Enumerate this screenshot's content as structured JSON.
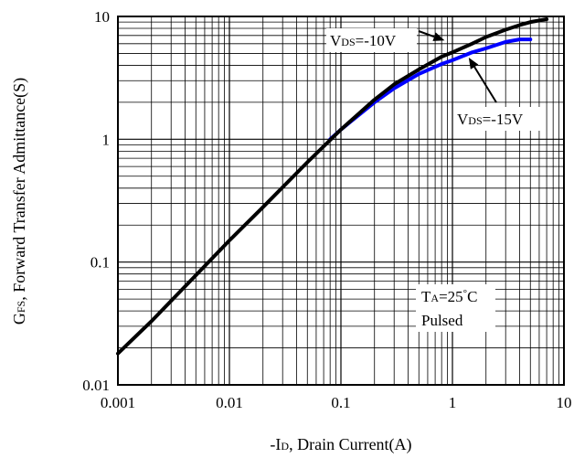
{
  "chart_data": {
    "type": "line",
    "xlabel": {
      "prefix": "-I",
      "sub": "D",
      "rest": ", Drain Current(A)"
    },
    "ylabel": {
      "prefix": "G",
      "sub": "FS",
      "rest": ", Forward Transfer Admittance(S)"
    },
    "xscale": "log",
    "yscale": "log",
    "xlim": [
      0.001,
      10
    ],
    "ylim": [
      0.01,
      10
    ],
    "grid": true,
    "x_ticks": [
      {
        "v": 0.001,
        "label": "0.001"
      },
      {
        "v": 0.01,
        "label": "0.01"
      },
      {
        "v": 0.1,
        "label": "0.1"
      },
      {
        "v": 1,
        "label": "1"
      },
      {
        "v": 10,
        "label": "10"
      }
    ],
    "y_ticks": [
      {
        "v": 0.01,
        "label": "0.01"
      },
      {
        "v": 0.1,
        "label": "0.1"
      },
      {
        "v": 1,
        "label": "1"
      },
      {
        "v": 10,
        "label": "10"
      }
    ],
    "series": [
      {
        "color": "#0000ff",
        "points": [
          [
            0.08,
            1.0
          ],
          [
            0.1,
            1.2
          ],
          [
            0.2,
            2.0
          ],
          [
            0.3,
            2.6
          ],
          [
            0.5,
            3.4
          ],
          [
            0.8,
            4.1
          ],
          [
            1.0,
            4.4
          ],
          [
            1.5,
            5.1
          ],
          [
            2.0,
            5.5
          ],
          [
            3.0,
            6.2
          ],
          [
            4.0,
            6.5
          ],
          [
            5.0,
            6.5
          ]
        ]
      },
      {
        "color": "#000000",
        "points": [
          [
            0.001,
            0.018
          ],
          [
            0.002,
            0.033
          ],
          [
            0.005,
            0.078
          ],
          [
            0.01,
            0.15
          ],
          [
            0.02,
            0.28
          ],
          [
            0.05,
            0.65
          ],
          [
            0.1,
            1.2
          ],
          [
            0.2,
            2.1
          ],
          [
            0.3,
            2.8
          ],
          [
            0.5,
            3.7
          ],
          [
            0.8,
            4.7
          ],
          [
            1.0,
            5.1
          ],
          [
            1.5,
            6.0
          ],
          [
            2.0,
            6.8
          ],
          [
            3.0,
            7.8
          ],
          [
            4.0,
            8.5
          ],
          [
            5.0,
            9.0
          ],
          [
            7.0,
            9.5
          ]
        ]
      }
    ],
    "annotations": {
      "vds10": {
        "prefix": "V",
        "sub": "DS",
        "rest": "=-10V",
        "arrow_to": [
          1.0,
          5.1
        ]
      },
      "vds15": {
        "prefix": "V",
        "sub": "DS",
        "rest": "=-15V",
        "arrow_to": [
          1.0,
          4.4
        ]
      },
      "conditions": {
        "line1": {
          "prefix": "T",
          "sub": "A",
          "rest": "=25",
          "deg": "°",
          "unit": "C"
        },
        "line2": "Pulsed"
      }
    }
  }
}
